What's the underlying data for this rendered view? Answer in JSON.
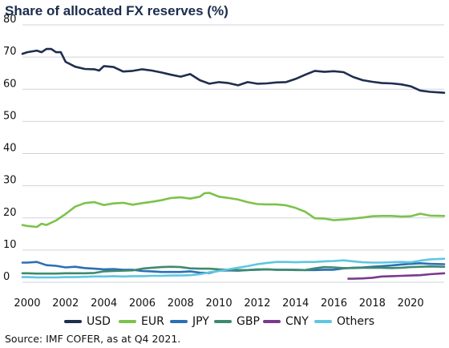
{
  "title": "Share of allocated FX reserves (%)",
  "source": "Source: IMF COFER, as at Q4 2021.",
  "colors": {
    "USD": "#1f2d4f",
    "EUR": "#7dc24a",
    "JPY": "#2c6fb5",
    "GBP": "#3e8a6e",
    "CNY": "#7a3a8c",
    "Others": "#5ec6e0"
  },
  "chart_data": {
    "type": "line",
    "title": "Share of allocated FX reserves (%)",
    "xlabel": "",
    "ylabel": "",
    "xlim": [
      1999.75,
      2021.75
    ],
    "ylim": [
      0,
      80
    ],
    "yticks": [
      "0",
      "10",
      "20",
      "30",
      "40",
      "50",
      "60",
      "70",
      "80"
    ],
    "xticks": [
      "2000",
      "2002",
      "2004",
      "2006",
      "2008",
      "2010",
      "2012",
      "2014",
      "2016",
      "2018",
      "2020"
    ],
    "grid": "horizontal",
    "legend": "bottom",
    "series": [
      {
        "name": "USD",
        "x": [
          1999.75,
          2000,
          2000.5,
          2000.75,
          2001,
          2001.25,
          2001.5,
          2001.75,
          2002,
          2002.5,
          2003,
          2003.5,
          2003.75,
          2004,
          2004.5,
          2005,
          2005.5,
          2006,
          2006.5,
          2007,
          2007.5,
          2008,
          2008.5,
          2009,
          2009.5,
          2010,
          2010.5,
          2011,
          2011.5,
          2012,
          2012.5,
          2013,
          2013.5,
          2014,
          2014.5,
          2015,
          2015.5,
          2016,
          2016.5,
          2017,
          2017.5,
          2018,
          2018.5,
          2019,
          2019.5,
          2020,
          2020.5,
          2021,
          2021.75
        ],
        "values": [
          71,
          71.5,
          72,
          71.5,
          72.5,
          72.5,
          71.5,
          71.5,
          68.5,
          67,
          66.3,
          66.2,
          65.8,
          67.2,
          66.9,
          65.5,
          65.7,
          66.2,
          65.8,
          65.2,
          64.5,
          63.9,
          64.7,
          62.8,
          61.7,
          62.2,
          61.9,
          61.2,
          62.2,
          61.7,
          61.8,
          62.1,
          62.2,
          63.2,
          64.5,
          65.7,
          65.4,
          65.6,
          65.3,
          63.8,
          62.8,
          62.3,
          61.9,
          61.8,
          61.5,
          60.9,
          59.6,
          59.2,
          58.9
        ]
      },
      {
        "name": "EUR",
        "x": [
          1999.75,
          2000,
          2000.5,
          2000.75,
          2001,
          2001.5,
          2002,
          2002.5,
          2003,
          2003.5,
          2004,
          2004.5,
          2005,
          2005.5,
          2006,
          2006.5,
          2007,
          2007.5,
          2008,
          2008.5,
          2009,
          2009.25,
          2009.5,
          2010,
          2010.5,
          2011,
          2011.5,
          2012,
          2012.5,
          2013,
          2013.5,
          2014,
          2014.5,
          2015,
          2015.5,
          2016,
          2016.5,
          2017,
          2017.5,
          2018,
          2018.5,
          2019,
          2019.5,
          2020,
          2020.5,
          2021,
          2021.75
        ],
        "values": [
          17.8,
          17.5,
          17.2,
          18.2,
          17.8,
          19.2,
          21.2,
          23.5,
          24.6,
          24.9,
          24,
          24.5,
          24.7,
          24.1,
          24.6,
          25,
          25.5,
          26.2,
          26.4,
          26,
          26.6,
          27.7,
          27.8,
          26.6,
          26.2,
          25.7,
          24.9,
          24.3,
          24.2,
          24.2,
          23.9,
          23.1,
          21.9,
          19.9,
          19.8,
          19.3,
          19.5,
          19.8,
          20.1,
          20.5,
          20.6,
          20.6,
          20.4,
          20.5,
          21.3,
          20.7,
          20.6
        ]
      },
      {
        "name": "JPY",
        "x": [
          1999.75,
          2000,
          2000.5,
          2001,
          2001.5,
          2002,
          2002.5,
          2003,
          2003.5,
          2004,
          2004.5,
          2005,
          2005.5,
          2006,
          2006.5,
          2007,
          2007.5,
          2008,
          2008.5,
          2009,
          2009.5,
          2010,
          2010.5,
          2011,
          2011.5,
          2012,
          2012.5,
          2013,
          2013.5,
          2014,
          2014.5,
          2015,
          2015.5,
          2016,
          2016.5,
          2017,
          2017.5,
          2018,
          2018.5,
          2019,
          2019.5,
          2020,
          2020.5,
          2021,
          2021.75
        ],
        "values": [
          6.1,
          6.1,
          6.3,
          5.3,
          5.1,
          4.6,
          4.8,
          4.4,
          4.2,
          4,
          4.1,
          3.9,
          3.9,
          3.5,
          3.4,
          3.2,
          3.2,
          3.2,
          3.4,
          3,
          2.9,
          3.6,
          3.7,
          3.6,
          3.8,
          3.9,
          4,
          3.9,
          3.9,
          3.9,
          3.8,
          3.8,
          3.9,
          3.9,
          4.3,
          4.5,
          4.6,
          4.8,
          5,
          5.2,
          5.5,
          5.7,
          5.9,
          5.7,
          5.6
        ]
      },
      {
        "name": "GBP",
        "x": [
          1999.75,
          2000,
          2000.5,
          2001,
          2001.5,
          2002,
          2002.5,
          2003,
          2003.5,
          2004,
          2004.5,
          2005,
          2005.5,
          2006,
          2006.5,
          2007,
          2007.5,
          2008,
          2008.5,
          2009,
          2009.5,
          2010,
          2010.5,
          2011,
          2011.5,
          2012,
          2012.5,
          2013,
          2013.5,
          2014,
          2014.5,
          2015,
          2015.5,
          2016,
          2016.5,
          2017,
          2017.5,
          2018,
          2018.5,
          2019,
          2019.5,
          2020,
          2020.5,
          2021,
          2021.75
        ],
        "values": [
          2.8,
          2.8,
          2.7,
          2.7,
          2.7,
          2.8,
          2.8,
          2.8,
          2.9,
          3.4,
          3.5,
          3.6,
          3.7,
          4.2,
          4.5,
          4.7,
          4.8,
          4.7,
          4.3,
          4.2,
          4.2,
          4,
          3.9,
          3.8,
          3.8,
          4,
          4,
          3.9,
          3.9,
          3.8,
          3.8,
          4.3,
          4.7,
          4.6,
          4.4,
          4.4,
          4.5,
          4.5,
          4.5,
          4.4,
          4.5,
          4.7,
          4.8,
          4.9,
          4.8
        ]
      },
      {
        "name": "CNY",
        "x": [
          2016.75,
          2017,
          2017.5,
          2018,
          2018.5,
          2019,
          2019.5,
          2020,
          2020.5,
          2021,
          2021.75
        ],
        "values": [
          1.1,
          1.1,
          1.2,
          1.4,
          1.8,
          1.9,
          2,
          2.1,
          2.2,
          2.5,
          2.8
        ]
      },
      {
        "name": "Others",
        "x": [
          1999.75,
          2000,
          2000.5,
          2001,
          2001.5,
          2002,
          2002.5,
          2003,
          2003.5,
          2004,
          2004.5,
          2005,
          2005.5,
          2006,
          2006.5,
          2007,
          2007.5,
          2008,
          2008.5,
          2009,
          2009.5,
          2010,
          2010.5,
          2011,
          2011.5,
          2012,
          2012.5,
          2013,
          2013.5,
          2014,
          2014.5,
          2015,
          2015.5,
          2016,
          2016.5,
          2017,
          2017.5,
          2018,
          2018.5,
          2019,
          2019.5,
          2020,
          2020.5,
          2021,
          2021.75
        ],
        "values": [
          1.6,
          1.6,
          1.5,
          1.5,
          1.5,
          1.6,
          1.6,
          1.7,
          1.8,
          1.8,
          1.9,
          1.8,
          1.9,
          1.9,
          2,
          2,
          2.1,
          2.1,
          2.2,
          2.5,
          3.1,
          3.5,
          4,
          4.5,
          5,
          5.6,
          6,
          6.3,
          6.3,
          6.2,
          6.3,
          6.3,
          6.5,
          6.6,
          6.8,
          6.5,
          6.2,
          6.1,
          6.1,
          6.2,
          6.3,
          6.2,
          6.7,
          7.1,
          7.3
        ]
      }
    ]
  }
}
